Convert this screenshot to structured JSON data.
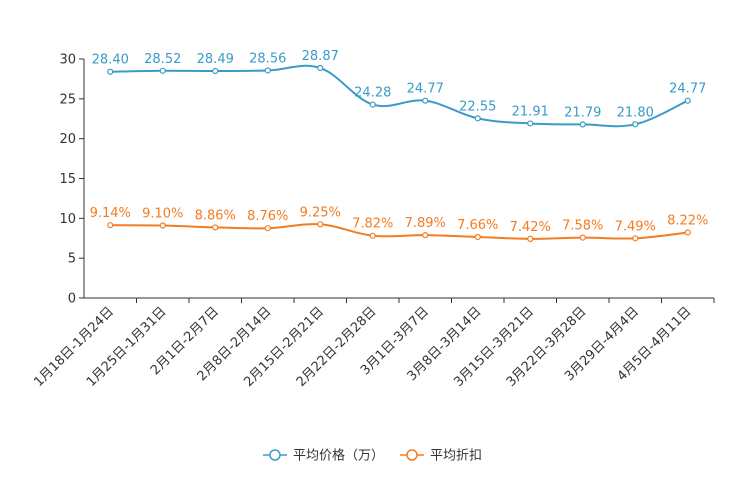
{
  "chart_data": {
    "type": "line",
    "title": "",
    "xlabel": "",
    "ylabel": "",
    "ylim": [
      0,
      30
    ],
    "yticks": [
      0,
      5,
      10,
      15,
      20,
      25,
      30
    ],
    "categories": [
      "1月18日-1月24日",
      "1月25日-1月31日",
      "2月1日-2月7日",
      "2月8日-2月14日",
      "2月15日-2月21日",
      "2月22日-2月28日",
      "3月1日-3月7日",
      "3月8日-3月14日",
      "3月15日-3月21日",
      "3月22日-3月28日",
      "3月29日-4月4日",
      "4月5日-4月11日"
    ],
    "series": [
      {
        "name": "平均价格（万）",
        "color": "#3a9bc7",
        "values": [
          28.4,
          28.52,
          28.49,
          28.56,
          28.87,
          24.28,
          24.77,
          22.55,
          21.91,
          21.79,
          21.8,
          24.77
        ],
        "labels": [
          "28.40",
          "28.52",
          "28.49",
          "28.56",
          "28.87",
          "24.28",
          "24.77",
          "22.55",
          "21.91",
          "21.79",
          "21.80",
          "24.77"
        ]
      },
      {
        "name": "平均折扣",
        "color": "#f47c20",
        "values": [
          9.14,
          9.1,
          8.86,
          8.76,
          9.25,
          7.82,
          7.89,
          7.66,
          7.42,
          7.58,
          7.49,
          8.22
        ],
        "labels": [
          "9.14%",
          "9.10%",
          "8.86%",
          "8.76%",
          "9.25%",
          "7.82%",
          "7.89%",
          "7.66%",
          "7.42%",
          "7.58%",
          "7.49%",
          "8.22%"
        ]
      }
    ],
    "legend_position": "bottom-center",
    "grid": false
  }
}
